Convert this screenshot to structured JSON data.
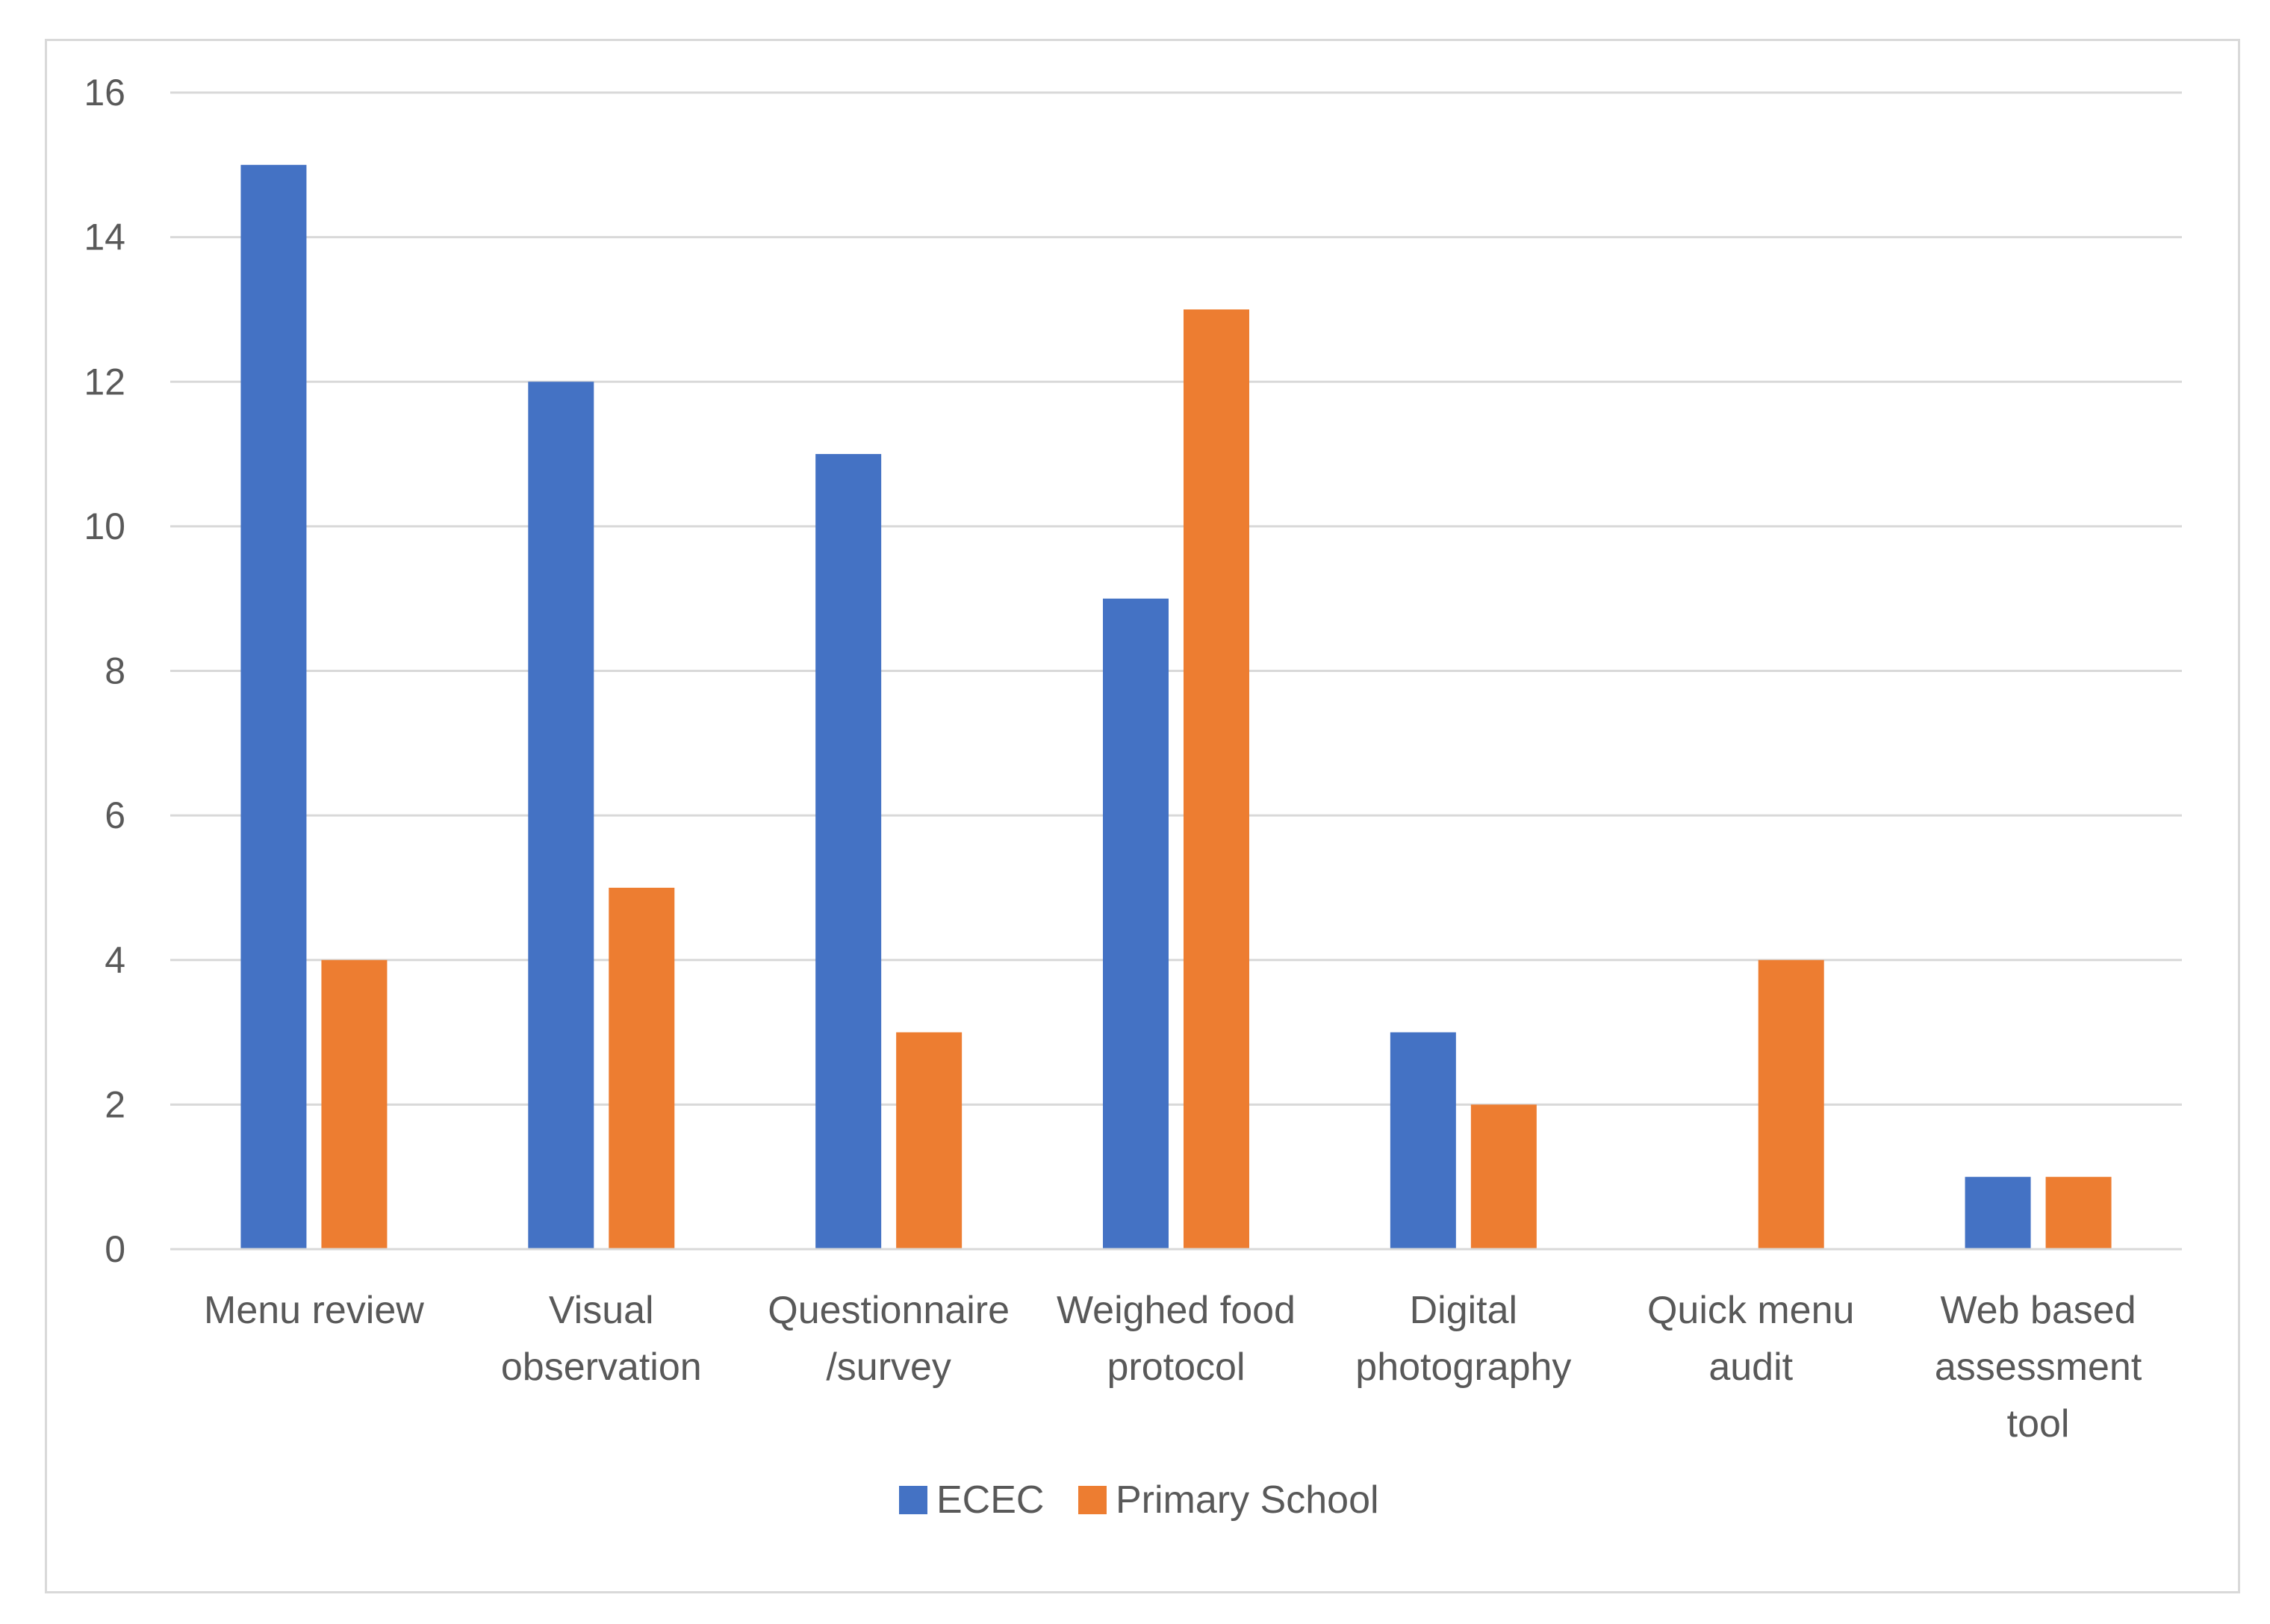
{
  "chart_data": {
    "type": "bar",
    "title": "",
    "xlabel": "",
    "ylabel": "",
    "categories": [
      [
        "Menu review"
      ],
      [
        "Visual",
        "observation"
      ],
      [
        "Questionnaire",
        "/survey"
      ],
      [
        "Weighed food",
        "protocol"
      ],
      [
        "Digital",
        "photography"
      ],
      [
        "Quick menu",
        "audit"
      ],
      [
        "Web based",
        "assessment",
        "tool"
      ]
    ],
    "series": [
      {
        "name": "ECEC",
        "color": "#4472c4",
        "values": [
          15,
          12,
          11,
          9,
          3,
          0,
          1
        ]
      },
      {
        "name": "Primary School",
        "color": "#ed7d31",
        "values": [
          4,
          5,
          3,
          13,
          2,
          4,
          1
        ]
      }
    ],
    "ylim": [
      0,
      16
    ],
    "yticks": [
      0,
      2,
      4,
      6,
      8,
      10,
      12,
      14,
      16
    ],
    "grid": true,
    "legend_position": "bottom-center"
  }
}
